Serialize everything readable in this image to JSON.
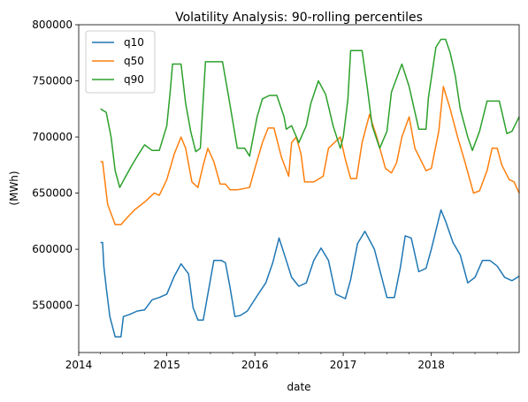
{
  "chart_data": {
    "type": "line",
    "title": "Volatility Analysis: 90-rolling percentiles",
    "xlabel": "date",
    "ylabel": "(MWh)",
    "xlim": [
      "2014-01-01",
      "2018-12-31"
    ],
    "ylim": [
      508000,
      800000
    ],
    "x_ticks": [
      "2014",
      "2015",
      "2016",
      "2017",
      "2018"
    ],
    "y_ticks": [
      550000,
      600000,
      650000,
      700000,
      750000,
      800000
    ],
    "y_tick_labels": [
      "550000",
      "600000",
      "650000",
      "700000",
      "750000",
      "800000"
    ],
    "grid": false,
    "legend_position": "top-left",
    "series": [
      {
        "name": "q10",
        "color": "#1f77b4",
        "x": [
          "2014-04-01",
          "2014-04-10",
          "2014-04-15",
          "2014-04-25",
          "2014-05-10",
          "2014-06-01",
          "2014-06-25",
          "2014-07-05",
          "2014-08-01",
          "2014-09-01",
          "2014-10-01",
          "2014-11-01",
          "2014-12-01",
          "2015-01-01",
          "2015-02-01",
          "2015-03-01",
          "2015-04-01",
          "2015-04-20",
          "2015-05-10",
          "2015-06-01",
          "2015-07-15",
          "2015-08-15",
          "2015-09-01",
          "2015-09-20",
          "2015-10-10",
          "2015-11-01",
          "2015-12-01",
          "2016-01-15",
          "2016-02-15",
          "2016-03-15",
          "2016-04-10",
          "2016-05-10",
          "2016-06-01",
          "2016-07-01",
          "2016-08-01",
          "2016-09-01",
          "2016-10-01",
          "2016-11-01",
          "2016-12-01",
          "2017-01-10",
          "2017-02-01",
          "2017-03-01",
          "2017-04-01",
          "2017-05-10",
          "2017-07-01",
          "2017-08-01",
          "2017-08-25",
          "2017-09-15",
          "2017-10-10",
          "2017-11-10",
          "2017-12-10",
          "2018-01-01",
          "2018-02-10",
          "2018-03-01",
          "2018-04-01",
          "2018-05-01",
          "2018-06-01",
          "2018-07-01",
          "2018-08-01",
          "2018-09-01",
          "2018-10-01",
          "2018-11-01",
          "2018-12-01",
          "2018-12-31"
        ],
        "y": [
          606000,
          606000,
          585000,
          566000,
          540000,
          522000,
          522000,
          540000,
          542000,
          545000,
          546000,
          555000,
          557000,
          560000,
          576000,
          587000,
          578000,
          548000,
          537000,
          537000,
          590000,
          590000,
          588000,
          566000,
          540000,
          541000,
          545000,
          560000,
          570000,
          588000,
          610000,
          590000,
          575000,
          567000,
          570000,
          590000,
          601000,
          590000,
          560000,
          556000,
          573000,
          605000,
          616000,
          600000,
          557000,
          557000,
          583000,
          612000,
          610000,
          580000,
          583000,
          600000,
          635000,
          625000,
          606000,
          595000,
          570000,
          575000,
          590000,
          590000,
          585000,
          575000,
          572000,
          576000
        ]
      },
      {
        "name": "q50",
        "color": "#ff7f0e",
        "x": [
          "2014-04-01",
          "2014-04-10",
          "2014-05-01",
          "2014-06-01",
          "2014-06-25",
          "2014-07-20",
          "2014-08-20",
          "2014-10-01",
          "2014-11-10",
          "2014-12-01",
          "2015-01-01",
          "2015-02-01",
          "2015-03-01",
          "2015-03-20",
          "2015-04-15",
          "2015-05-10",
          "2015-06-01",
          "2015-06-20",
          "2015-07-15",
          "2015-08-10",
          "2015-09-01",
          "2015-09-20",
          "2015-10-20",
          "2015-12-10",
          "2016-01-01",
          "2016-02-01",
          "2016-02-25",
          "2016-03-20",
          "2016-04-20",
          "2016-05-20",
          "2016-06-01",
          "2016-06-20",
          "2016-07-10",
          "2016-07-25",
          "2016-09-01",
          "2016-10-10",
          "2016-11-01",
          "2016-12-20",
          "2017-01-10",
          "2017-02-01",
          "2017-02-25",
          "2017-03-20",
          "2017-04-20",
          "2017-05-20",
          "2017-06-25",
          "2017-07-20",
          "2017-08-10",
          "2017-09-01",
          "2017-10-01",
          "2017-10-25",
          "2017-12-10",
          "2018-01-01",
          "2018-02-01",
          "2018-02-20",
          "2018-03-20",
          "2018-04-20",
          "2018-05-20",
          "2018-06-25",
          "2018-07-20",
          "2018-08-20",
          "2018-09-10",
          "2018-10-01",
          "2018-10-20",
          "2018-11-20",
          "2018-12-10",
          "2018-12-31"
        ],
        "y": [
          678000,
          678000,
          640000,
          622000,
          622000,
          628000,
          635000,
          642000,
          650000,
          648000,
          662000,
          685000,
          700000,
          690000,
          660000,
          655000,
          675000,
          690000,
          678000,
          658000,
          658000,
          653000,
          653000,
          655000,
          672000,
          695000,
          708000,
          708000,
          682000,
          665000,
          695000,
          700000,
          685000,
          660000,
          660000,
          665000,
          690000,
          700000,
          680000,
          663000,
          663000,
          695000,
          720000,
          700000,
          672000,
          668000,
          677000,
          700000,
          718000,
          690000,
          670000,
          672000,
          705000,
          745000,
          725000,
          700000,
          678000,
          650000,
          652000,
          670000,
          690000,
          690000,
          675000,
          662000,
          660000,
          650000
        ]
      },
      {
        "name": "q90",
        "color": "#2ca02c",
        "x": [
          "2014-04-01",
          "2014-04-25",
          "2014-05-15",
          "2014-06-01",
          "2014-06-20",
          "2014-07-15",
          "2014-08-10",
          "2014-09-01",
          "2014-10-01",
          "2014-11-01",
          "2014-12-01",
          "2015-01-01",
          "2015-01-15",
          "2015-01-25",
          "2015-03-01",
          "2015-03-20",
          "2015-04-10",
          "2015-05-01",
          "2015-05-20",
          "2015-06-10",
          "2015-08-20",
          "2015-09-15",
          "2015-10-20",
          "2015-11-20",
          "2015-12-10",
          "2016-01-10",
          "2016-02-01",
          "2016-03-01",
          "2016-04-01",
          "2016-05-01",
          "2016-05-10",
          "2016-06-01",
          "2016-07-01",
          "2016-08-01",
          "2016-08-20",
          "2016-09-20",
          "2016-10-20",
          "2016-11-20",
          "2016-12-20",
          "2017-01-01",
          "2017-01-20",
          "2017-02-01",
          "2017-03-20",
          "2017-04-10",
          "2017-05-01",
          "2017-06-01",
          "2017-07-01",
          "2017-07-20",
          "2017-09-01",
          "2017-10-01",
          "2017-11-10",
          "2017-12-10",
          "2017-12-20",
          "2018-01-20",
          "2018-02-10",
          "2018-03-01",
          "2018-03-20",
          "2018-04-10",
          "2018-05-01",
          "2018-06-01",
          "2018-06-20",
          "2018-07-20",
          "2018-08-20",
          "2018-10-10",
          "2018-11-10",
          "2018-12-01",
          "2018-12-31"
        ],
        "y": [
          725000,
          722000,
          700000,
          670000,
          655000,
          665000,
          675000,
          683000,
          693000,
          688000,
          688000,
          710000,
          740000,
          765000,
          765000,
          730000,
          705000,
          687000,
          690000,
          767000,
          767000,
          735000,
          690000,
          690000,
          683000,
          718000,
          734000,
          737000,
          737000,
          718000,
          707000,
          710000,
          695000,
          710000,
          730000,
          750000,
          738000,
          710000,
          690000,
          700000,
          733000,
          777000,
          777000,
          745000,
          710000,
          690000,
          705000,
          740000,
          765000,
          745000,
          707000,
          707000,
          735000,
          780000,
          787000,
          787000,
          775000,
          755000,
          725000,
          700000,
          688000,
          705000,
          732000,
          732000,
          703000,
          705000,
          718000
        ]
      }
    ]
  }
}
